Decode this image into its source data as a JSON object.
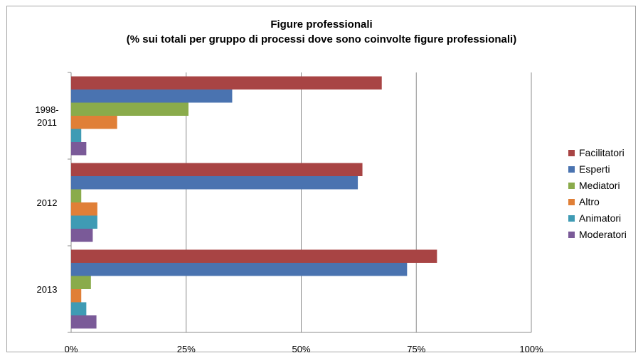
{
  "chart_data": {
    "type": "bar",
    "orientation": "horizontal",
    "title": [
      "Figure professionali",
      "(%  sui totali per gruppo di processi dove sono coinvolte figure professionali)"
    ],
    "categories": [
      [
        "1998-",
        "2011"
      ],
      [
        "2012"
      ],
      [
        "2013"
      ]
    ],
    "series": [
      {
        "name": "Facilitatori",
        "color": "#a84444",
        "values": [
          0.675,
          0.633,
          0.795
        ]
      },
      {
        "name": "Esperti",
        "color": "#4a73b0",
        "values": [
          0.35,
          0.623,
          0.73
        ]
      },
      {
        "name": "Mediatori",
        "color": "#8aab4b",
        "values": [
          0.255,
          0.022,
          0.043
        ]
      },
      {
        "name": "Altro",
        "color": "#e07f37",
        "values": [
          0.1,
          0.057,
          0.022
        ]
      },
      {
        "name": "Animatori",
        "color": "#3f9bb4",
        "values": [
          0.022,
          0.057,
          0.033
        ]
      },
      {
        "name": "Moderatori",
        "color": "#7a5a98",
        "values": [
          0.033,
          0.047,
          0.055
        ]
      }
    ],
    "xticks": [
      "0%",
      "25%",
      "50%",
      "75%",
      "100%"
    ],
    "xlim": [
      0,
      1
    ],
    "grid": "vertical",
    "legend_position": "right"
  }
}
